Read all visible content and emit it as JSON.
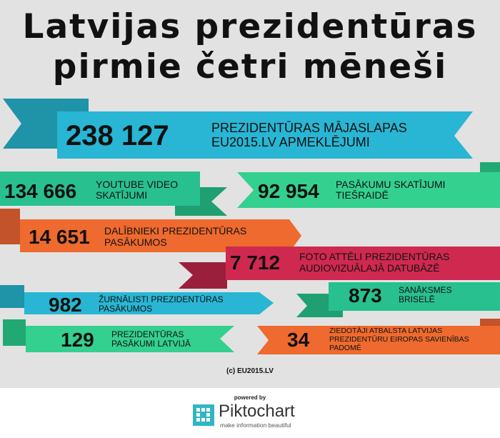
{
  "title": {
    "line1": "Latvijas prezidentūras",
    "line2": "pirmie četri mēneši"
  },
  "stats": [
    {
      "value": "238 127",
      "label1": "PREZIDENTŪRAS MĀJASLAPAS",
      "label2": "EU2015.LV APMEKLĒJUMI",
      "color": "#29b6d4"
    },
    {
      "value": "134 666",
      "label1": "YOUTUBE VIDEO",
      "label2": "SKATĪJUMI",
      "color": "#28c08e"
    },
    {
      "value": "92 954",
      "label1": "PASĀKUMU SKATĪJUMI",
      "label2": "TIEŠRAIDĒ",
      "color": "#34d08f"
    },
    {
      "value": "14 651",
      "label1": "DALĪBNIEKI PREZIDENTŪRAS",
      "label2": "PASĀKUMOS",
      "color": "#ee6a2e"
    },
    {
      "value": "7 712",
      "label1": "FOTO ATTĒLI PREZIDENTŪRAS",
      "label2": "AUDIOVIZUĀLAJĀ DATUBĀZĒ",
      "color": "#cf2950"
    },
    {
      "value": "982",
      "label1": "ŽURNĀLISTI PREZIDENTŪRAS",
      "label2": "PASĀKUMOS",
      "color": "#29b6d4"
    },
    {
      "value": "873",
      "label1": "SANĀKSMES",
      "label2": "BRISELĒ",
      "color": "#28c08e"
    },
    {
      "value": "129",
      "label1": "PREZIDENTŪRAS",
      "label2": "PASĀKUMI LATVIJĀ",
      "color": "#34d08f"
    },
    {
      "value": "34",
      "label1": "ZIEDOTĀJI ATBALSTA LATVIJAS",
      "label2": "PREZIDENTŪRU EIROPAS SAVIENĪBAS",
      "label3": "PADOMĒ",
      "color": "#ee6a2e"
    }
  ],
  "copyright": "(c) EU2015.LV",
  "footer": {
    "powered_by": "powered by",
    "brand": "Piktochart",
    "tagline": "make information beautiful"
  }
}
